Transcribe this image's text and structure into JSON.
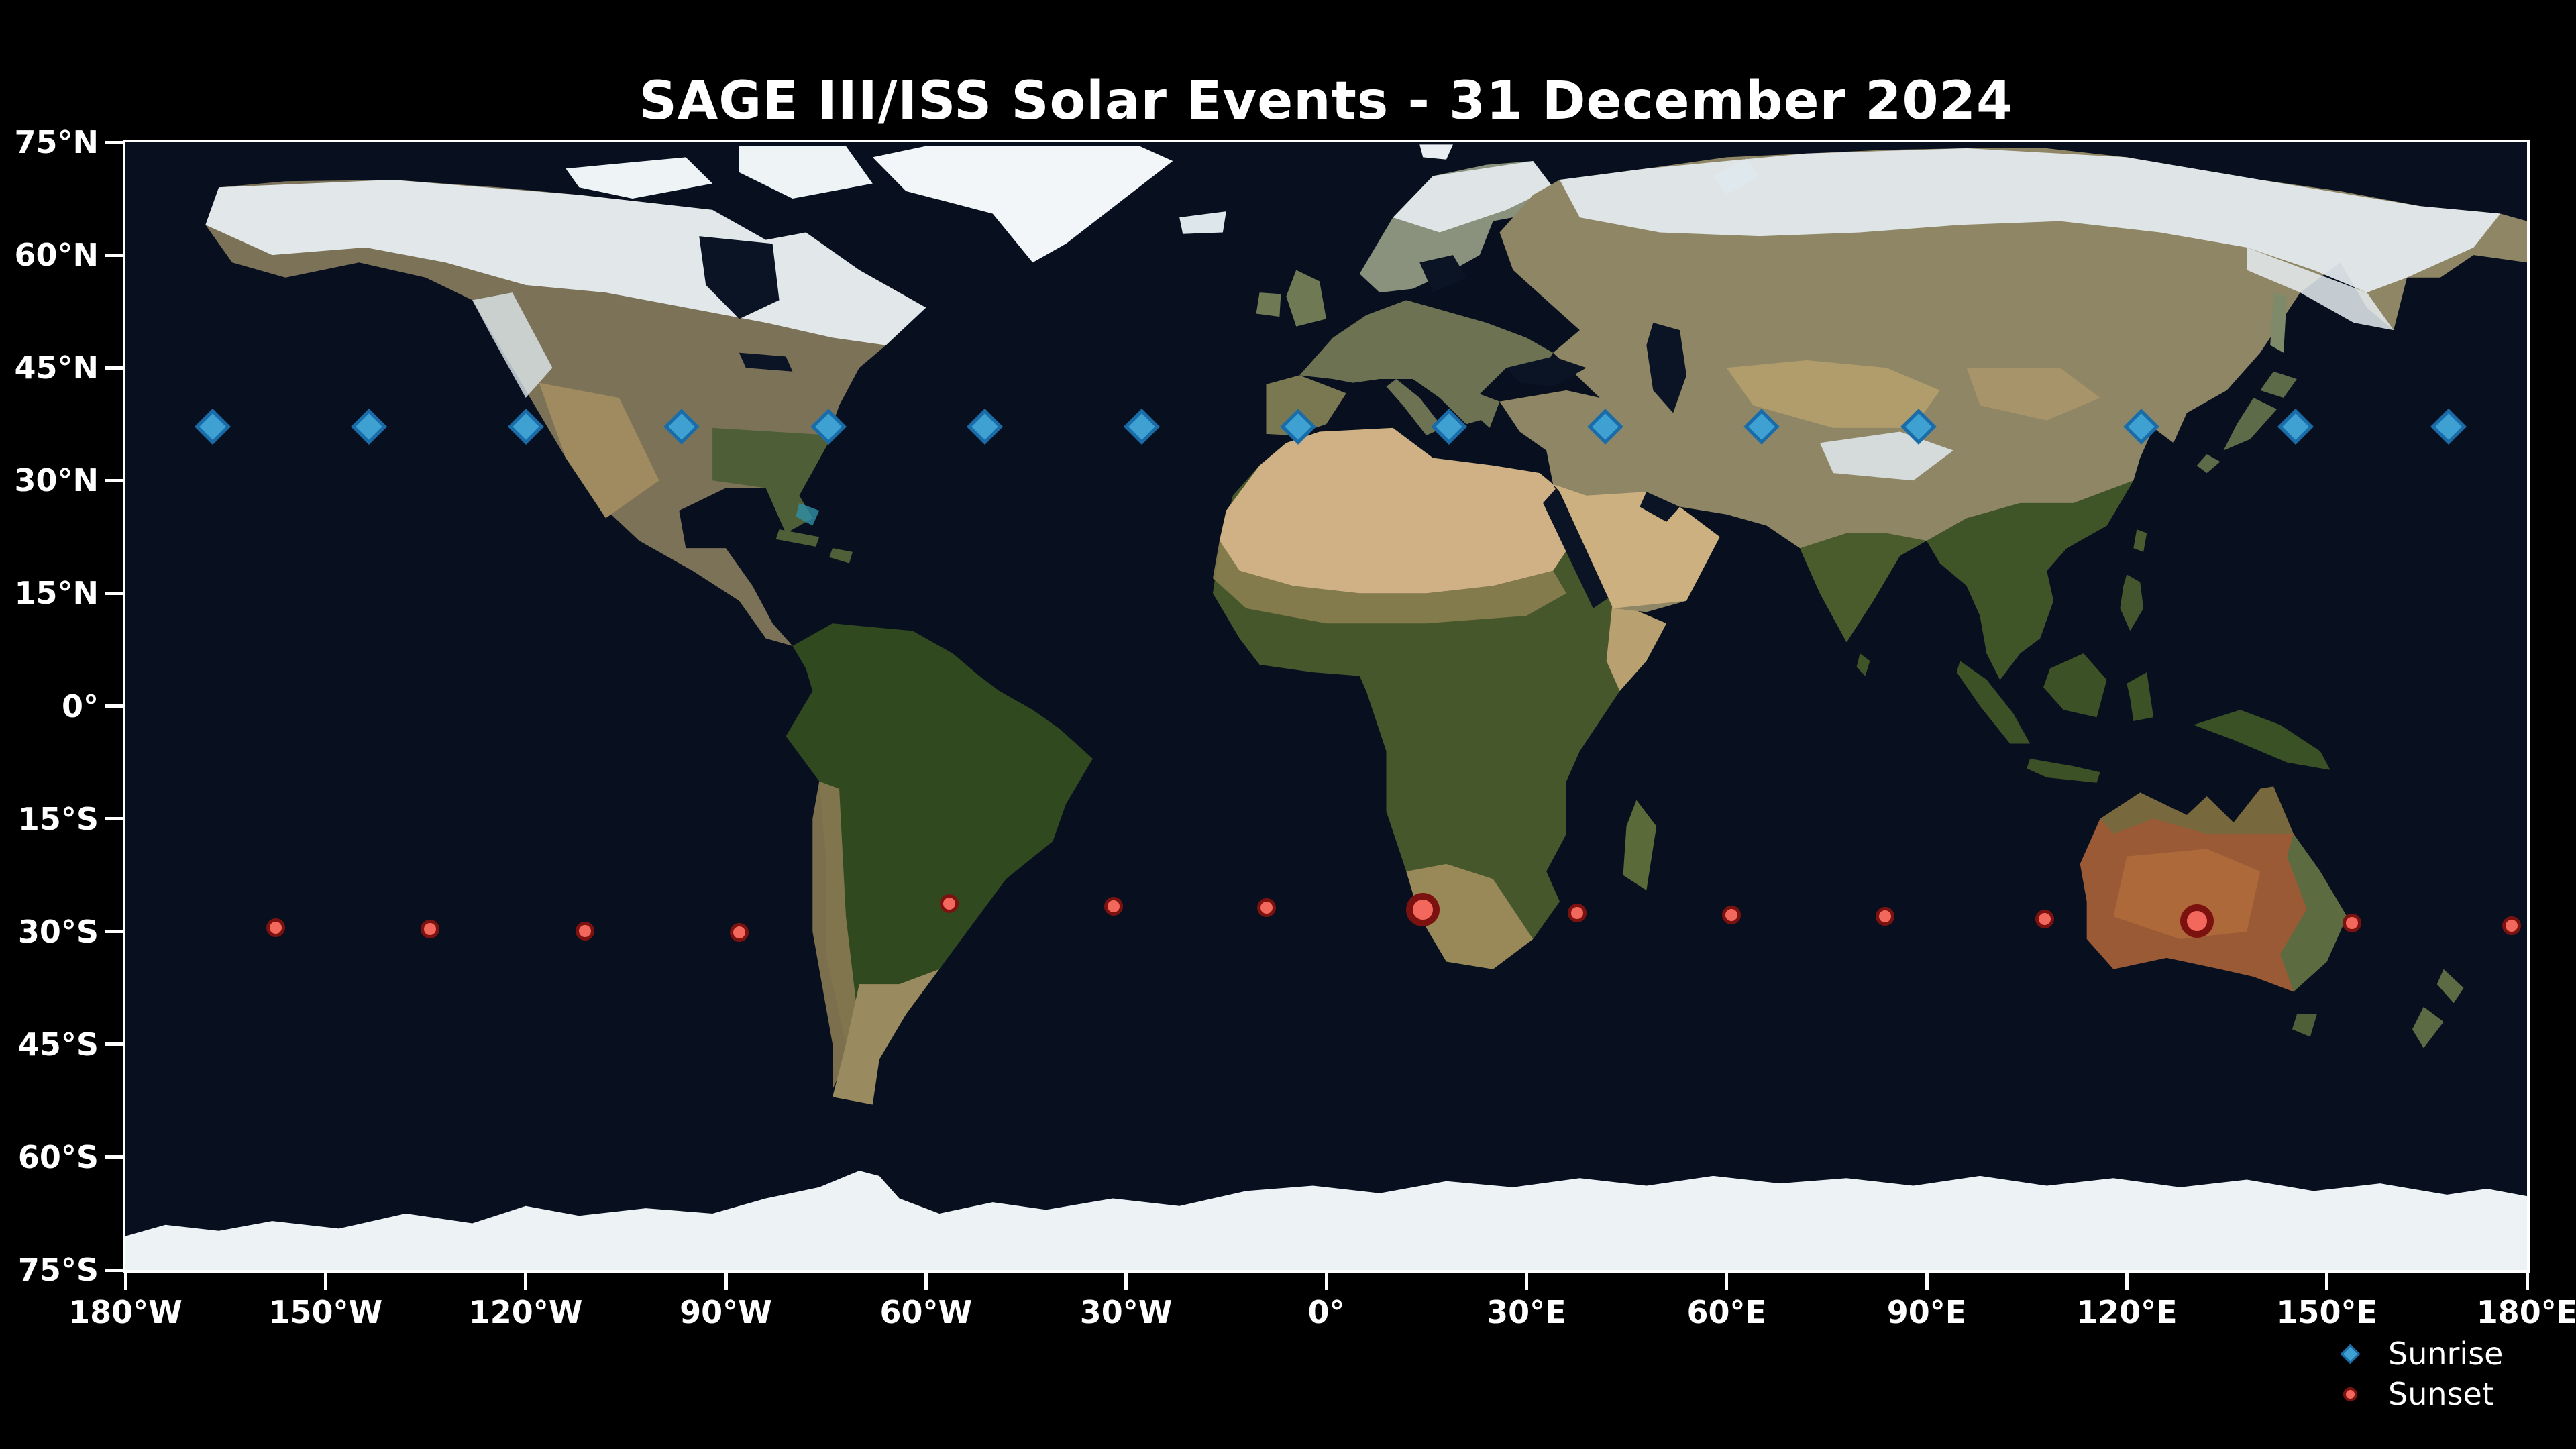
{
  "title": "SAGE III/ISS Solar Events - 31 December 2024",
  "legend": {
    "items": [
      {
        "label": "Sunrise",
        "marker": "diamond",
        "color": "#3fa0d2",
        "edge_color": "#1a6ca9"
      },
      {
        "label": "Sunset",
        "marker": "circle",
        "color": "#f2685c",
        "edge_color": "#7c1210"
      }
    ]
  },
  "axes": {
    "lat_ticks": [
      {
        "label": "75°N",
        "value": 75
      },
      {
        "label": "60°N",
        "value": 60
      },
      {
        "label": "45°N",
        "value": 45
      },
      {
        "label": "30°N",
        "value": 30
      },
      {
        "label": "15°N",
        "value": 15
      },
      {
        "label": "0°",
        "value": 0
      },
      {
        "label": "15°S",
        "value": -15
      },
      {
        "label": "30°S",
        "value": -30
      },
      {
        "label": "45°S",
        "value": -45
      },
      {
        "label": "60°S",
        "value": -60
      },
      {
        "label": "75°S",
        "value": -75
      }
    ],
    "lon_ticks": [
      {
        "label": "180°W",
        "value": -180
      },
      {
        "label": "150°W",
        "value": -150
      },
      {
        "label": "120°W",
        "value": -120
      },
      {
        "label": "90°W",
        "value": -90
      },
      {
        "label": "60°W",
        "value": -60
      },
      {
        "label": "30°W",
        "value": -30
      },
      {
        "label": "0°",
        "value": 0
      },
      {
        "label": "30°E",
        "value": 30
      },
      {
        "label": "60°E",
        "value": 60
      },
      {
        "label": "90°E",
        "value": 90
      },
      {
        "label": "120°E",
        "value": 120
      },
      {
        "label": "150°E",
        "value": 150
      },
      {
        "label": "180°E",
        "value": 180
      }
    ]
  },
  "chart_data": {
    "type": "scatter",
    "title": "SAGE III/ISS Solar Events - 31 December 2024",
    "basemap": "NASA Blue Marble equirectangular world map",
    "xlabel": "",
    "ylabel": "",
    "xlim": [
      -180,
      180
    ],
    "ylim": [
      -75,
      75
    ],
    "grid": false,
    "legend_position": "lower right outside map",
    "series": [
      {
        "name": "Sunrise",
        "marker": "diamond",
        "color": "#3fa0d2",
        "edge_color": "#1a6ca9",
        "points": [
          {
            "lon": -166.9,
            "lat": 37.2
          },
          {
            "lon": -143.5,
            "lat": 37.2
          },
          {
            "lon": -120.0,
            "lat": 37.2
          },
          {
            "lon": -96.6,
            "lat": 37.2
          },
          {
            "lon": -74.6,
            "lat": 37.2
          },
          {
            "lon": -51.2,
            "lat": 37.2
          },
          {
            "lon": -27.7,
            "lat": 37.2
          },
          {
            "lon": -4.2,
            "lat": 37.2
          },
          {
            "lon": 18.4,
            "lat": 37.2
          },
          {
            "lon": 41.8,
            "lat": 37.2
          },
          {
            "lon": 65.3,
            "lat": 37.2
          },
          {
            "lon": 88.8,
            "lat": 37.2
          },
          {
            "lon": 122.2,
            "lat": 37.2
          },
          {
            "lon": 145.3,
            "lat": 37.2
          },
          {
            "lon": 168.2,
            "lat": 37.2
          }
        ]
      },
      {
        "name": "Sunset",
        "marker": "circle",
        "color": "#f2685c",
        "edge_color": "#7c1210",
        "points": [
          {
            "lon": -157.5,
            "lat": -29.5
          },
          {
            "lon": -134.3,
            "lat": -29.7
          },
          {
            "lon": -111.1,
            "lat": -29.9
          },
          {
            "lon": -88.0,
            "lat": -30.1
          },
          {
            "lon": -56.5,
            "lat": -26.3
          },
          {
            "lon": -31.9,
            "lat": -26.6
          },
          {
            "lon": -9.0,
            "lat": -26.8
          },
          {
            "lon": 14.5,
            "lat": -27.1,
            "large": true
          },
          {
            "lon": 37.6,
            "lat": -27.5
          },
          {
            "lon": 60.7,
            "lat": -27.8
          },
          {
            "lon": 83.8,
            "lat": -28.0
          },
          {
            "lon": 107.7,
            "lat": -28.3
          },
          {
            "lon": 130.5,
            "lat": -28.6,
            "large": true
          },
          {
            "lon": 153.8,
            "lat": -28.9
          },
          {
            "lon": 177.7,
            "lat": -29.2
          }
        ]
      }
    ]
  }
}
